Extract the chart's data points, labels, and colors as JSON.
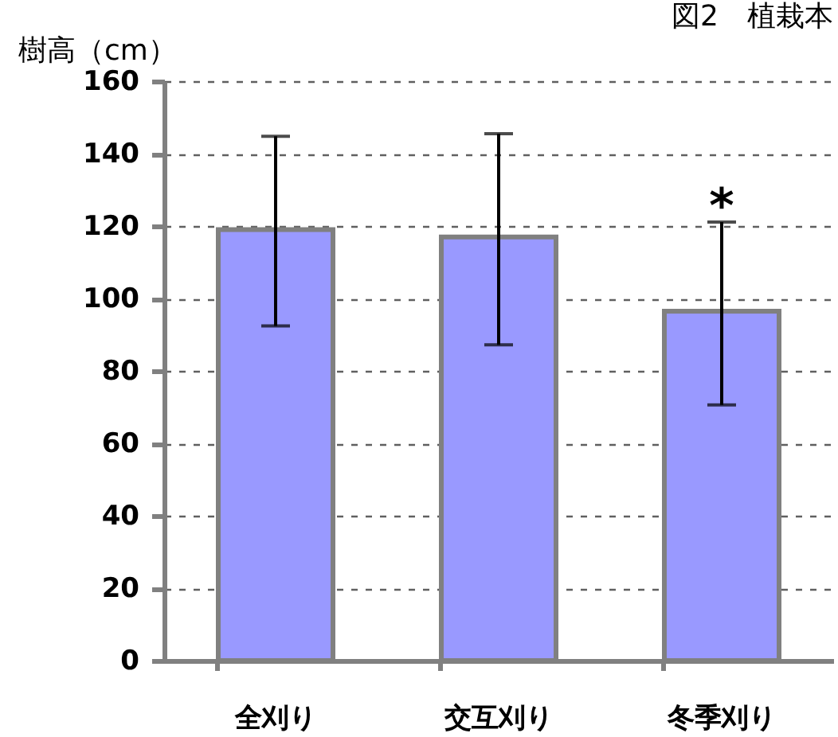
{
  "chart_data": {
    "type": "bar",
    "title": "図2　植栽本",
    "ylabel": "樹高（cm）",
    "categories": [
      "全刈り",
      "交互刈り",
      "冬季刈り"
    ],
    "values": [
      119,
      117,
      96.5
    ],
    "errors": [
      [
        92.4,
        144.8
      ],
      [
        87.2,
        145.5
      ],
      [
        70.6,
        121.1
      ]
    ],
    "color": "#9999ff",
    "ylim": [
      0,
      160
    ],
    "yticks": [
      0,
      20,
      40,
      60,
      80,
      100,
      120,
      140,
      160
    ],
    "grid": "y",
    "annotations": [
      {
        "text": "*",
        "x": "冬季刈り",
        "y": 121.1
      }
    ]
  }
}
